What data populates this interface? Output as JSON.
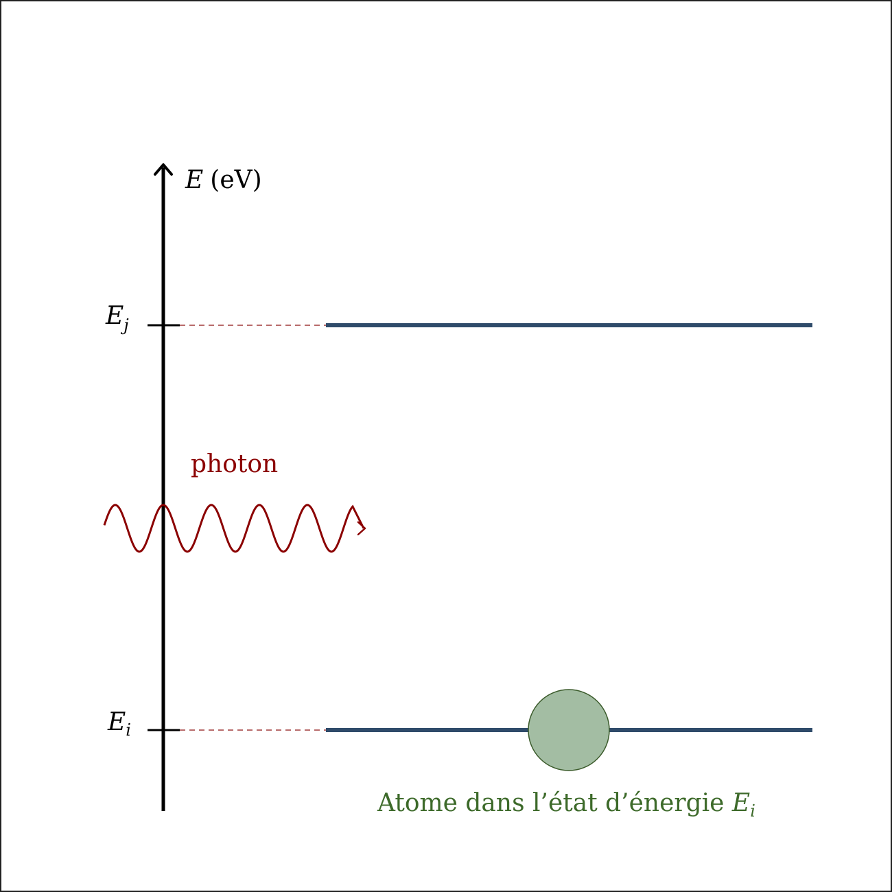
{
  "axis": {
    "symbol": "E",
    "unit": "(eV)"
  },
  "levels": {
    "upper": {
      "symbol": "E",
      "subscript": "j"
    },
    "lower": {
      "symbol": "E",
      "subscript": "i"
    }
  },
  "photon": {
    "label": "photon"
  },
  "atom": {
    "caption_prefix": "Atome dans l’état d’énergie ",
    "caption_symbol": "E",
    "caption_subscript": "i"
  },
  "colors": {
    "axis": "#000000",
    "level": "#2f4b6a",
    "photon": "#8b0000",
    "dashed": "#a03a3a",
    "atom_fill": "#a3bda3",
    "atom_stroke": "#3a5a2a",
    "caption": "#3d6a2a"
  }
}
